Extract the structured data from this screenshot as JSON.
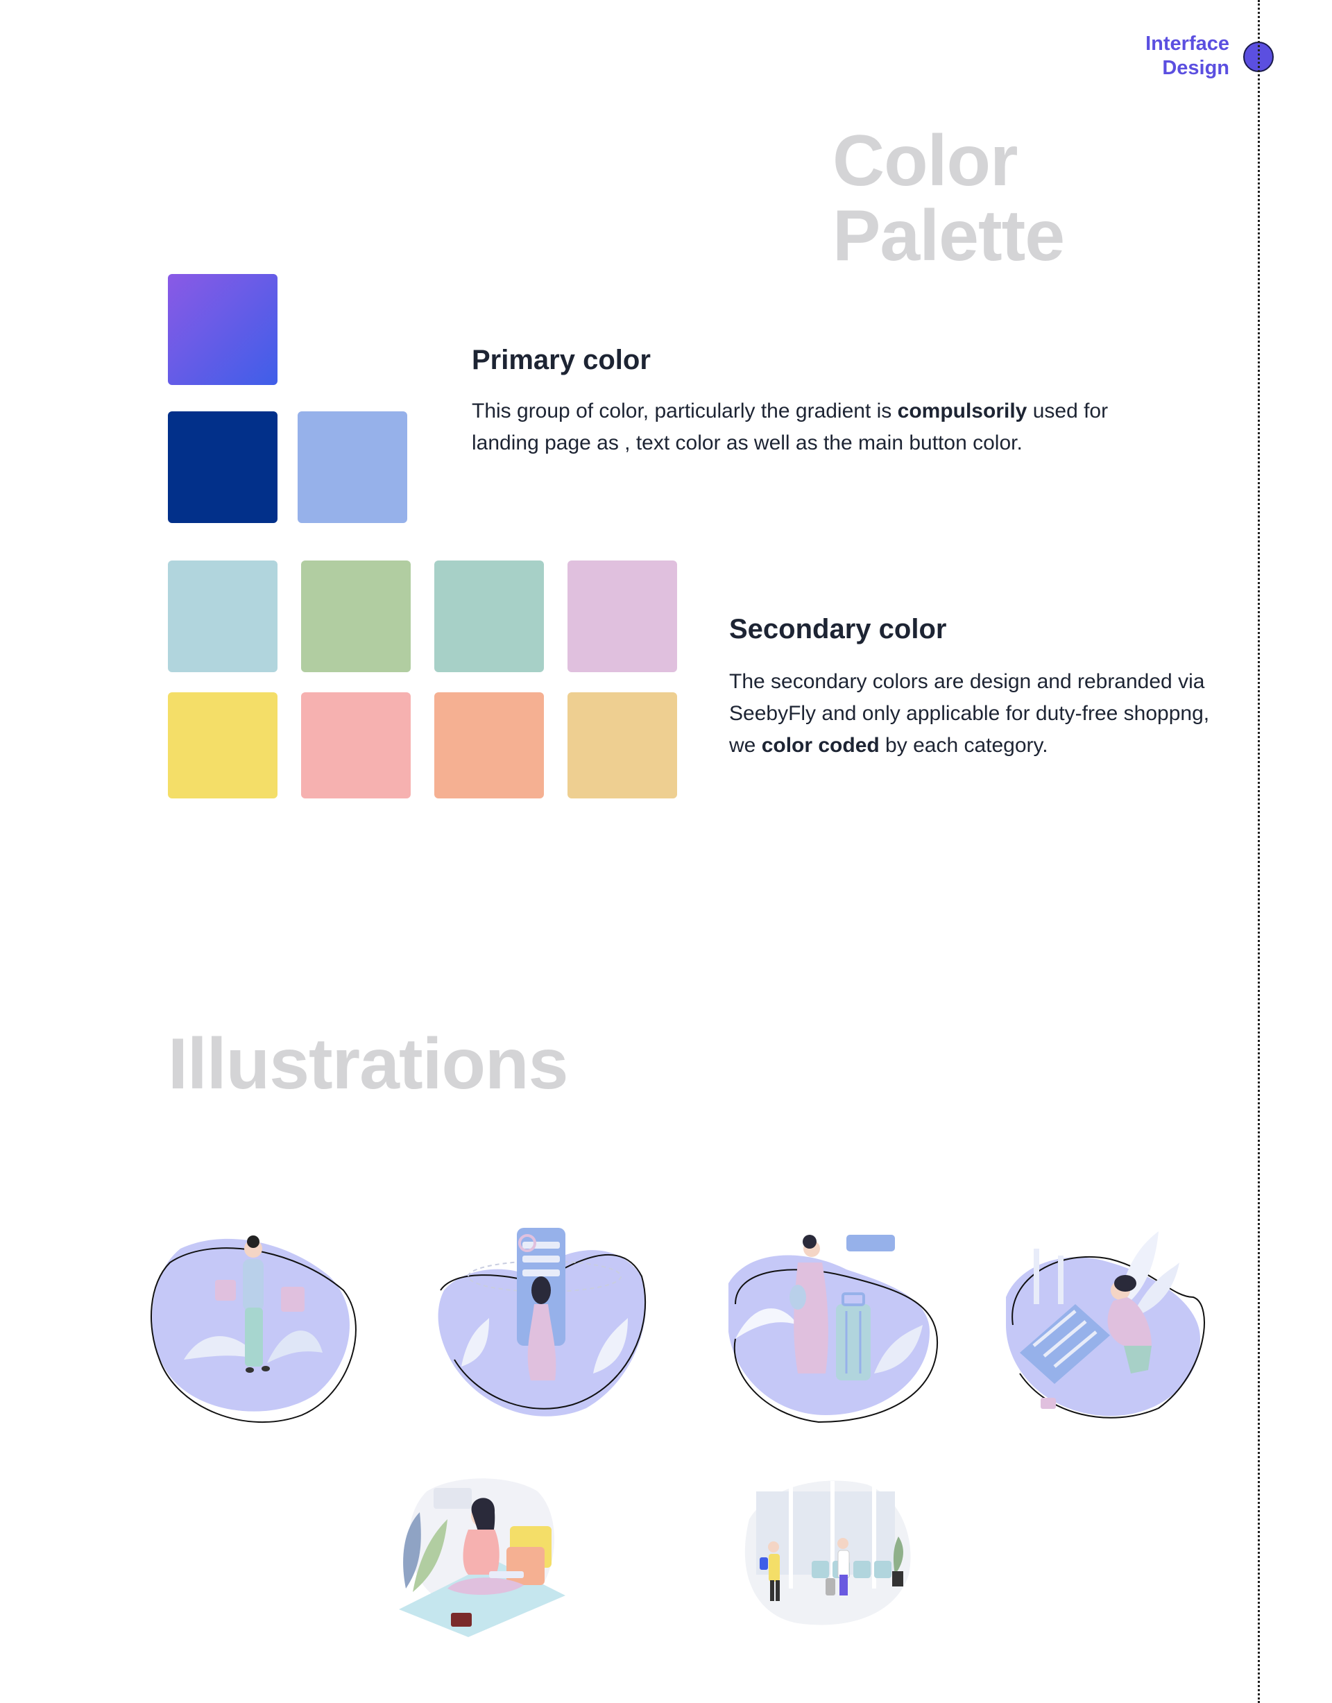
{
  "header": {
    "tag_line1": "Interface",
    "tag_line2": "Design",
    "accent_color": "#5b4fe0"
  },
  "color_palette": {
    "title_line1": "Color",
    "title_line2": "Palette",
    "primary": {
      "heading": "Primary color",
      "text_before": "This group of color, particularly the gradient is ",
      "text_bold": "compulsorily",
      "text_after": " used for landing page as , text color as well as the main button color.",
      "swatches": [
        {
          "name": "gradient",
          "from": "#8a5ae6",
          "to": "#3f5ee8"
        },
        {
          "name": "navy",
          "color": "#02308a"
        },
        {
          "name": "periwinkle",
          "color": "#96b1ea"
        }
      ]
    },
    "secondary": {
      "heading": "Secondary color",
      "text_before": "The secondary colors are design and rebranded via SeebyFly and only applicable for duty-free shoppng, we ",
      "text_bold": "color coded",
      "text_after": " by each category.",
      "swatches": [
        "#b1d5dd",
        "#b1cda1",
        "#a7d0c7",
        "#e0c0de",
        "#f4de68",
        "#f6b1b0",
        "#f5b092",
        "#eecf91"
      ]
    }
  },
  "illustrations": {
    "title": "Illustrations",
    "items": [
      {
        "icon": "shopping-woman-illustration"
      },
      {
        "icon": "phone-search-illustration"
      },
      {
        "icon": "traveler-luggage-illustration"
      },
      {
        "icon": "packing-suitcase-illustration"
      },
      {
        "icon": "woman-sitting-luggage-illustration"
      },
      {
        "icon": "airport-lounge-illustration"
      }
    ]
  }
}
